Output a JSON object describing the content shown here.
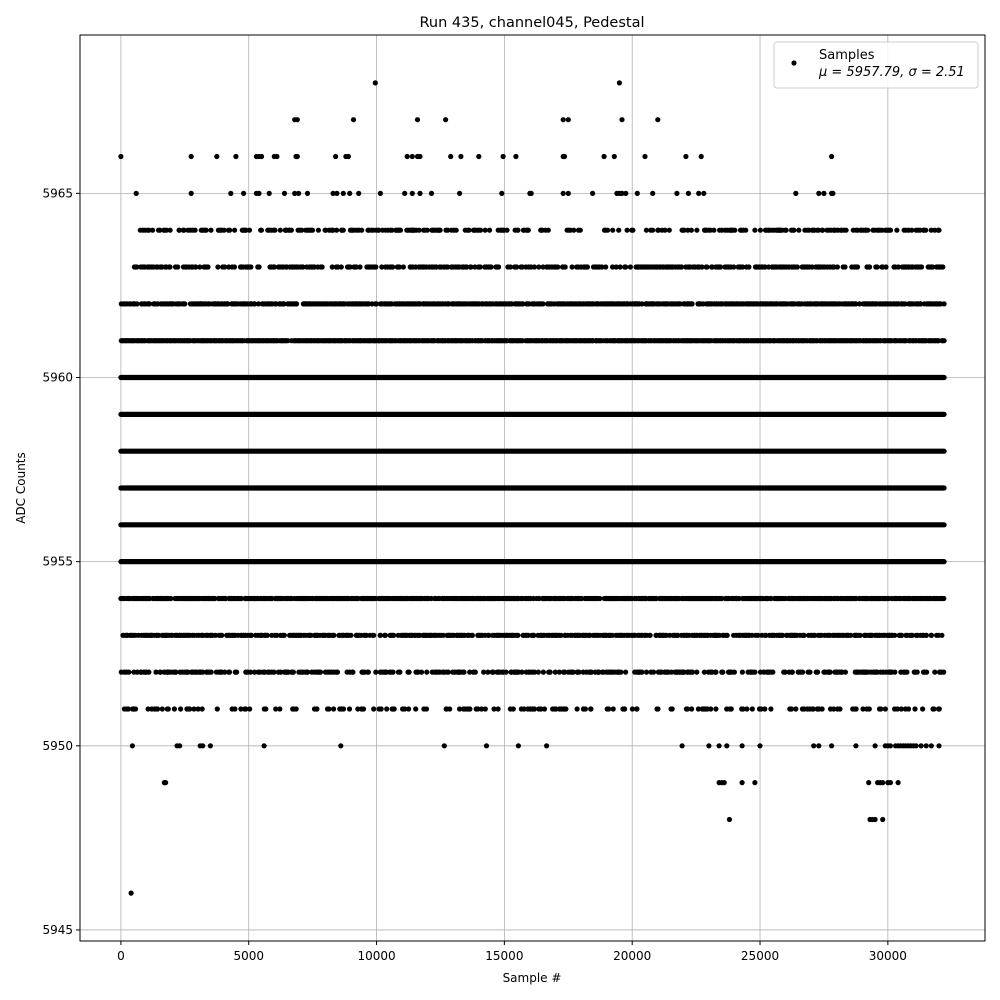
{
  "chart_data": {
    "type": "scatter",
    "title": "Run 435, channel045, Pedestal",
    "xlabel": "Sample #",
    "ylabel": "ADC Counts",
    "xlim": [
      -1600,
      33800
    ],
    "ylim": [
      5944.7,
      5969.3
    ],
    "xticks": [
      0,
      5000,
      10000,
      15000,
      20000,
      25000,
      30000
    ],
    "yticks": [
      5945,
      5950,
      5955,
      5960,
      5965
    ],
    "grid": true,
    "marker_color": "#000000",
    "legend": {
      "placement": "top-right",
      "label": "Samples",
      "stats": "μ = 5957.79, σ = 2.51"
    },
    "series": [
      {
        "name": "Samples",
        "n_samples": 32200,
        "levels": [
          {
            "y": 5968,
            "x": [
              9950,
              19500
            ]
          },
          {
            "y": 5967,
            "x": [
              6800,
              6900,
              9100,
              11600,
              12700,
              17300,
              17500,
              19600,
              21000
            ]
          },
          {
            "y": 5966,
            "x": [
              0,
              2750,
              3750,
              4500,
              5300,
              5400,
              5500,
              6000,
              6100,
              6850,
              6900,
              8400,
              8800,
              8900,
              11200,
              11400,
              11600,
              11700,
              12900,
              13300,
              14000,
              14950,
              15450,
              17300,
              17350,
              18900,
              19300,
              20500,
              22100,
              22700,
              27800
            ]
          },
          {
            "y": 5965,
            "x": [
              600,
              2750,
              4300,
              4800,
              5300,
              5400,
              5800,
              6400,
              6800,
              6950,
              7300,
              8300,
              8450,
              8700,
              8950,
              9300,
              10150,
              11100,
              11400,
              11700,
              12150,
              13250,
              14900,
              16000,
              16050,
              17300,
              17500,
              18450,
              19400,
              19500,
              19600,
              19750,
              20200,
              20800,
              21750,
              22200,
              22600,
              22800,
              26400,
              27300,
              27500,
              27800,
              27850
            ]
          }
        ],
        "dense_levels": [
          {
            "y": 5964,
            "x_range": [
              500,
              32200
            ],
            "density": 0.35
          },
          {
            "y": 5963,
            "x_range": [
              500,
              32200
            ],
            "density": 0.45
          },
          {
            "y": 5962,
            "x_range": [
              0,
              32200
            ],
            "density": 0.7
          },
          {
            "y": 5961,
            "x_range": [
              0,
              32200
            ],
            "density": 0.92
          },
          {
            "y": 5960,
            "x_range": [
              0,
              32200
            ],
            "density": 1.0
          },
          {
            "y": 5959,
            "x_range": [
              0,
              32200
            ],
            "density": 1.0
          },
          {
            "y": 5958,
            "x_range": [
              0,
              32200
            ],
            "density": 1.0
          },
          {
            "y": 5957,
            "x_range": [
              0,
              32200
            ],
            "density": 1.0
          },
          {
            "y": 5956,
            "x_range": [
              0,
              32200
            ],
            "density": 1.0
          },
          {
            "y": 5955,
            "x_range": [
              0,
              32200
            ],
            "density": 1.0
          },
          {
            "y": 5954,
            "x_range": [
              0,
              32200
            ],
            "density": 0.8
          },
          {
            "y": 5953,
            "x_range": [
              0,
              32200
            ],
            "density": 0.6
          },
          {
            "y": 5952,
            "x_range": [
              0,
              32200
            ],
            "density": 0.4
          },
          {
            "y": 5951,
            "x_range": [
              0,
              32200
            ],
            "density": 0.22
          }
        ],
        "sparse_low": [
          {
            "y": 5950,
            "x": [
              450,
              2200,
              2300,
              3100,
              3200,
              3500,
              5600,
              8600,
              12650,
              14300,
              15550,
              16650,
              21950,
              23000,
              23400,
              23700,
              24300,
              25000,
              27100,
              27300,
              27800,
              28750,
              29500,
              29900,
              30000,
              30100,
              30300,
              30400,
              30500,
              30600,
              30700,
              30800,
              30900,
              31000,
              31100,
              31300,
              31500,
              31700,
              32000
            ]
          },
          {
            "y": 5949,
            "x": [
              1700,
              1750,
              23400,
              23500,
              23600,
              24300,
              24800,
              29250,
              29600,
              29700,
              29800,
              30000,
              30100,
              30400
            ]
          },
          {
            "y": 5948,
            "x": [
              23800,
              29300,
              29400,
              29500,
              29800
            ]
          },
          {
            "y": 5946,
            "x": [
              400
            ]
          }
        ]
      }
    ]
  }
}
